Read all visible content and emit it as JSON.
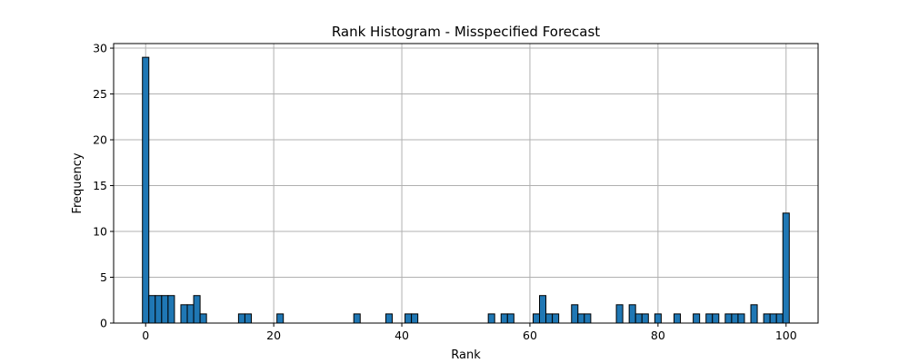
{
  "chart_data": {
    "type": "bar",
    "title": "Rank Histogram - Misspecified Forecast",
    "xlabel": "Rank",
    "ylabel": "Frequency",
    "xlim": [
      -5,
      105
    ],
    "ylim": [
      0,
      30.5
    ],
    "xticks": [
      0,
      20,
      40,
      60,
      80,
      100
    ],
    "yticks": [
      0,
      5,
      10,
      15,
      20,
      25,
      30
    ],
    "grid": true,
    "bar_color": "#1f77b4",
    "edge_color": "#000000",
    "grid_color": "#b0b0b0",
    "x": [
      0,
      1,
      2,
      3,
      4,
      6,
      7,
      8,
      9,
      15,
      16,
      21,
      33,
      38,
      41,
      42,
      54,
      56,
      57,
      61,
      62,
      63,
      64,
      67,
      68,
      69,
      74,
      76,
      77,
      78,
      80,
      83,
      86,
      88,
      89,
      91,
      92,
      93,
      95,
      97,
      98,
      99,
      100
    ],
    "values": [
      29,
      3,
      3,
      3,
      3,
      2,
      2,
      3,
      1,
      1,
      1,
      1,
      1,
      1,
      1,
      1,
      1,
      1,
      1,
      1,
      3,
      1,
      1,
      2,
      1,
      1,
      2,
      2,
      1,
      1,
      1,
      1,
      1,
      1,
      1,
      1,
      1,
      1,
      2,
      1,
      1,
      1,
      12
    ]
  }
}
